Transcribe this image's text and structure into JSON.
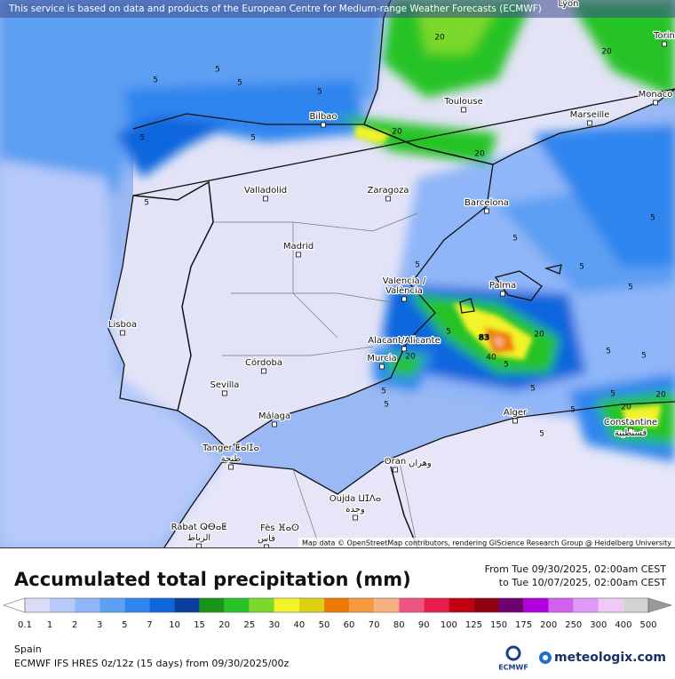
{
  "header": {
    "notice": "This service is based on data and products of the European Centre for Medium-range Weather Forecasts (ECMWF)",
    "attribution": "Map data © OpenStreetMap contributors, rendering GIScience Research Group @ Heidelberg University"
  },
  "cities": [
    {
      "name": "Lyon"
    },
    {
      "name": "Torin"
    },
    {
      "name": "Toulouse"
    },
    {
      "name": "Marseille"
    },
    {
      "name": "Monaco"
    },
    {
      "name": "Bilbao"
    },
    {
      "name": "Valladolid"
    },
    {
      "name": "Zaragoza"
    },
    {
      "name": "Barcelona"
    },
    {
      "name": "Madrid"
    },
    {
      "name": "Valencia /"
    },
    {
      "name": "València"
    },
    {
      "name": "Palma"
    },
    {
      "name": "Lisboa"
    },
    {
      "name": "Alacant/Alicante"
    },
    {
      "name": "Murcia"
    },
    {
      "name": "Córdoba"
    },
    {
      "name": "Sevilla"
    },
    {
      "name": "Málaga"
    },
    {
      "name": "Alger"
    },
    {
      "name": "Constantine"
    },
    {
      "name": "قسنطينة"
    },
    {
      "name": "Tanger ⵟⴰⵏⵊⴰ"
    },
    {
      "name": "طنجة"
    },
    {
      "name": "Oran"
    },
    {
      "name": "وهران"
    },
    {
      "name": "Oujda ⵡⵊⴷⴰ"
    },
    {
      "name": "وجدة"
    },
    {
      "name": "Rabat ⵕⴱⴰⵟ"
    },
    {
      "name": "الرباط"
    },
    {
      "name": "Fès ⴼⴰⵙ"
    },
    {
      "name": "فاس"
    }
  ],
  "contour_labels": [
    5,
    5,
    5,
    5,
    5,
    5,
    5,
    5,
    5,
    5,
    5,
    5,
    5,
    5,
    5,
    5,
    5,
    5,
    5,
    5,
    5,
    5,
    20,
    20,
    20,
    20,
    20,
    20,
    20,
    20,
    40,
    83
  ],
  "legend": {
    "title": "Accumulated total precipitation (mm)",
    "ticks": [
      0.1,
      1,
      2,
      3,
      5,
      7,
      10,
      15,
      20,
      25,
      30,
      40,
      50,
      60,
      70,
      80,
      90,
      100,
      125,
      150,
      175,
      200,
      250,
      300,
      400,
      500
    ],
    "colors": [
      "#d9dcf7",
      "#b6c9f9",
      "#8fb6f8",
      "#5d9ff2",
      "#2f85ee",
      "#0e66dd",
      "#0a3f9e",
      "#17951a",
      "#27c327",
      "#7ad92a",
      "#f3f32a",
      "#ddd012",
      "#ee7a04",
      "#f79a3e",
      "#f7b181",
      "#ef5382",
      "#e61c4d",
      "#c20012",
      "#8f0012",
      "#6f0070",
      "#b100df",
      "#d160ef",
      "#e199f7",
      "#f1c9f8",
      "#d2d2d2"
    ]
  },
  "footer": {
    "from": "From Tue 09/30/2025, 02:00am CEST",
    "to": "to Tue 10/07/2025, 02:00am CEST",
    "region": "Spain",
    "model": "ECMWF IFS HRES 0z/12z (15 days) from 09/30/2025/00z",
    "ecmwf": "ECMWF",
    "brand": "meteologix.com"
  }
}
